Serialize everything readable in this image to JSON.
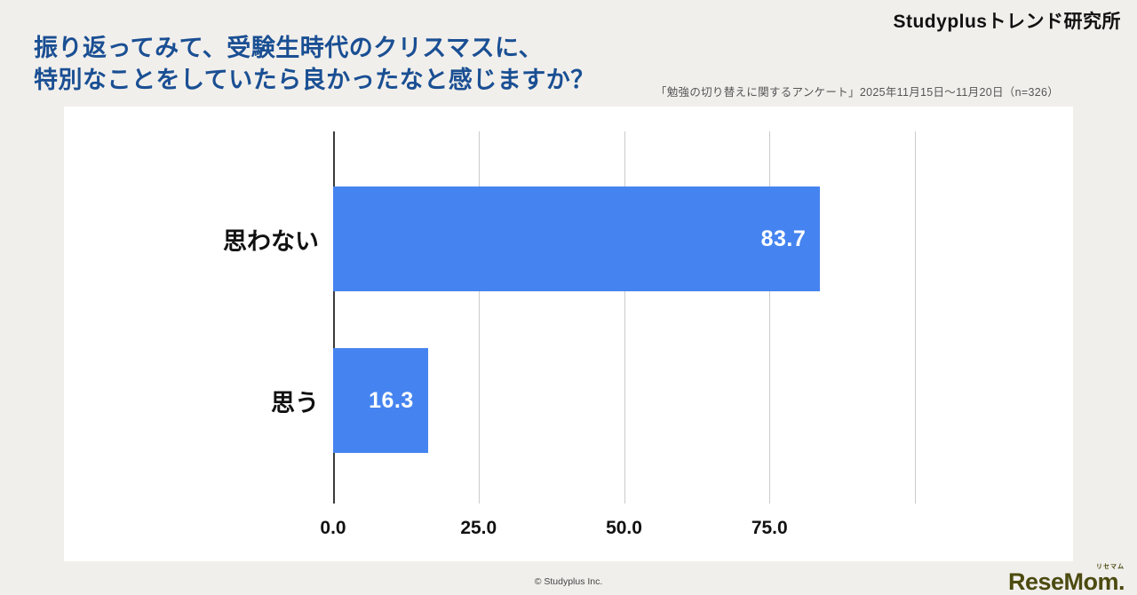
{
  "header": {
    "brand": "Studyplusトレンド研究所",
    "title_line1": "振り返ってみて、受験生時代のクリスマスに、",
    "title_line2": "特別なことをしていたら良かったなと感じますか？",
    "survey_note": "「勉強の切り替えに関するアンケート」2025年11月15日～11月20日（n=326）"
  },
  "chart_data": {
    "type": "bar",
    "orientation": "horizontal",
    "title": "振り返ってみて、受験生時代のクリスマスに、特別なことをしていたら良かったなと感じますか？",
    "categories": [
      "思わない",
      "思う"
    ],
    "values": [
      83.7,
      16.3
    ],
    "value_labels": [
      "83.7",
      "16.3"
    ],
    "xlim": [
      0,
      100
    ],
    "x_ticks": [
      {
        "pos": 0,
        "label": "0.0"
      },
      {
        "pos": 25,
        "label": "25.0"
      },
      {
        "pos": 50,
        "label": "50.0"
      },
      {
        "pos": 75,
        "label": "75.0"
      },
      {
        "pos": 100,
        "label": ""
      }
    ],
    "grid": true,
    "legend": false,
    "bar_color": "#4584f0"
  },
  "footer": {
    "copyright": "© Studyplus Inc.",
    "logo_text": "ReseMom.",
    "logo_kana": "リセマム"
  },
  "colors": {
    "title": "#1a4f93",
    "bar": "#4584f0",
    "background": "#f1efec",
    "logo": "#4c4b10"
  }
}
